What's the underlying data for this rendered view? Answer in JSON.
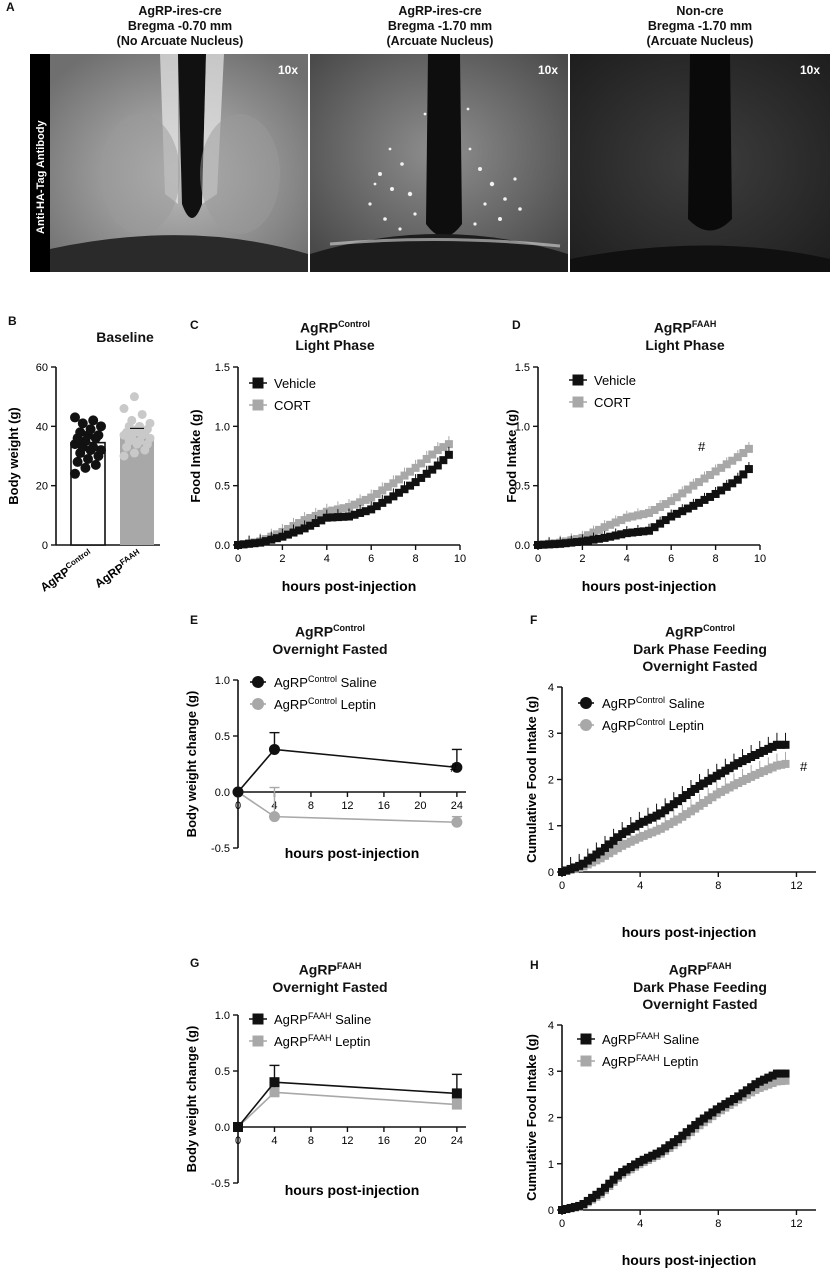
{
  "panel_A": {
    "letter": "A",
    "side_label": "Anti-HA-Tag Antibody",
    "mag_label": "10x",
    "images": [
      {
        "title_lines": [
          "AgRP-ires-cre",
          "Bregma -0.70 mm",
          "(No Arcuate Nucleus)"
        ]
      },
      {
        "title_lines": [
          "AgRP-ires-cre",
          "Bregma -1.70 mm",
          "(Arcuate Nucleus)"
        ]
      },
      {
        "title_lines": [
          "Non-cre",
          "Bregma -1.70 mm",
          "(Arcuate Nucleus)"
        ]
      }
    ]
  },
  "colors": {
    "black_series": "#111111",
    "gray_series": "#a8a8a8",
    "light_series": "#c9c9c9"
  },
  "chart_data": [
    {
      "id": "B",
      "letter": "B",
      "type": "bar",
      "title": "Baseline",
      "ylabel": "Body weight  (g)",
      "ylim": [
        0,
        60
      ],
      "yticks": [
        "0",
        "20",
        "40",
        "60"
      ],
      "categories": [
        {
          "base": "AgRP",
          "sup": "Control"
        },
        {
          "base": "AgRP",
          "sup": "FAAH"
        }
      ],
      "values": [
        34.5,
        36.8
      ],
      "points": [
        [
          24,
          26,
          27,
          28,
          29,
          30,
          31,
          32,
          32,
          33,
          33,
          34,
          35,
          36,
          36,
          37,
          37,
          38,
          39,
          40,
          41,
          42,
          43
        ],
        [
          30,
          31,
          32,
          33,
          34,
          34,
          35,
          35,
          36,
          36,
          37,
          37,
          38,
          38,
          38,
          39,
          39,
          40,
          40,
          41,
          42,
          44,
          46,
          50
        ]
      ]
    },
    {
      "id": "C",
      "letter": "C",
      "type": "line",
      "title_base": "AgRP",
      "title_sup": "Control",
      "title_line2": "Light Phase",
      "ylabel": "Food  Intake  (g)",
      "xlabel": "hours post-injection",
      "xlim": [
        0,
        10
      ],
      "ylim": [
        0,
        1.5
      ],
      "xticks": [
        "0",
        "2",
        "4",
        "6",
        "8",
        "10"
      ],
      "yticks": [
        "0.0",
        "0.5",
        "1.0",
        "1.5"
      ],
      "legend": [
        {
          "text": "Vehicle"
        },
        {
          "text": "CORT"
        }
      ],
      "series": [
        {
          "name": "Vehicle",
          "x": [
            0,
            1,
            2,
            3,
            4,
            5,
            6,
            7,
            8,
            9,
            9.5
          ],
          "y": [
            0.0,
            0.02,
            0.07,
            0.14,
            0.23,
            0.24,
            0.3,
            0.41,
            0.53,
            0.67,
            0.76
          ]
        },
        {
          "name": "CORT",
          "x": [
            0,
            1,
            2,
            3,
            4,
            5,
            6,
            7,
            8,
            9,
            9.5
          ],
          "y": [
            0.0,
            0.03,
            0.11,
            0.21,
            0.28,
            0.32,
            0.4,
            0.52,
            0.65,
            0.8,
            0.85
          ]
        }
      ]
    },
    {
      "id": "D",
      "letter": "D",
      "type": "line",
      "title_base": "AgRP",
      "title_sup": "FAAH",
      "title_line2": "Light Phase",
      "ylabel": "Food  Intake  (g)",
      "xlabel": "hours post-injection",
      "xlim": [
        0,
        10
      ],
      "ylim": [
        0,
        1.5
      ],
      "xticks": [
        "0",
        "2",
        "4",
        "6",
        "8",
        "10"
      ],
      "yticks": [
        "0.0",
        "0.5",
        "1.0",
        "1.5"
      ],
      "legend": [
        {
          "text": "Vehicle"
        },
        {
          "text": "CORT"
        }
      ],
      "annotation": "#",
      "series": [
        {
          "name": "Vehicle",
          "x": [
            0,
            1,
            2,
            3,
            4,
            5,
            6,
            7,
            8,
            9,
            9.5
          ],
          "y": [
            0.0,
            0.01,
            0.03,
            0.06,
            0.1,
            0.12,
            0.24,
            0.33,
            0.43,
            0.55,
            0.64
          ]
        },
        {
          "name": "CORT",
          "x": [
            0,
            1,
            2,
            3,
            4,
            5,
            6,
            7,
            8,
            9,
            9.5
          ],
          "y": [
            0.0,
            0.02,
            0.06,
            0.15,
            0.23,
            0.27,
            0.37,
            0.5,
            0.62,
            0.74,
            0.81
          ]
        }
      ]
    },
    {
      "id": "E",
      "letter": "E",
      "type": "line",
      "title_base": "AgRP",
      "title_sup": "Control",
      "title_line2": "Overnight Fasted",
      "ylabel": "Body weight change (g)",
      "xlabel": "hours post-injection",
      "xlim": [
        0,
        25
      ],
      "ylim": [
        -0.5,
        1.0
      ],
      "xticks": [
        "0",
        "4",
        "8",
        "12",
        "16",
        "20",
        "24"
      ],
      "yticks": [
        "-0.5",
        "0.0",
        "0.5",
        "1.0"
      ],
      "legend": [
        {
          "base": "AgRP",
          "sup": "Control",
          "text": " Saline"
        },
        {
          "base": "AgRP",
          "sup": "Control",
          "text": " Leptin"
        }
      ],
      "annotation": "#",
      "series": [
        {
          "name": "Saline",
          "x": [
            0,
            4,
            24
          ],
          "y": [
            0.0,
            0.38,
            0.22
          ],
          "err": [
            0,
            0.15,
            0.16
          ]
        },
        {
          "name": "Leptin",
          "x": [
            0,
            4,
            24
          ],
          "y": [
            0.0,
            -0.22,
            -0.27
          ],
          "err": [
            0,
            0.26,
            0.05
          ]
        }
      ]
    },
    {
      "id": "F",
      "letter": "F",
      "type": "line",
      "title_base": "AgRP",
      "title_sup": "Control",
      "title_line2": "Dark Phase  Feeding",
      "title_line3": "Overnight Fasted",
      "ylabel": "Cumulative Food  Intake (g)",
      "xlabel": "hours post-injection",
      "xlim": [
        0,
        13
      ],
      "ylim": [
        0,
        4
      ],
      "xticks": [
        "0",
        "4",
        "8",
        "12"
      ],
      "yticks": [
        "0",
        "1",
        "2",
        "3",
        "4"
      ],
      "legend": [
        {
          "base": "AgRP",
          "sup": "Control",
          "text": " Saline"
        },
        {
          "base": "AgRP",
          "sup": "Control",
          "text": " Leptin"
        }
      ],
      "annotation": "#",
      "series": [
        {
          "name": "Saline",
          "x": [
            0,
            1,
            2,
            3,
            4,
            5,
            6,
            7,
            8,
            9,
            10,
            11,
            11.6
          ],
          "y": [
            0.0,
            0.15,
            0.45,
            0.8,
            1.05,
            1.25,
            1.55,
            1.85,
            2.1,
            2.35,
            2.55,
            2.75,
            2.75
          ]
        },
        {
          "name": "Leptin",
          "x": [
            0,
            1,
            2,
            3,
            4,
            5,
            6,
            7,
            8,
            9,
            10,
            11,
            11.6
          ],
          "y": [
            0.0,
            0.1,
            0.3,
            0.55,
            0.75,
            0.92,
            1.15,
            1.42,
            1.7,
            1.92,
            2.12,
            2.3,
            2.35
          ]
        }
      ]
    },
    {
      "id": "G",
      "letter": "G",
      "type": "line",
      "title_base": "AgRP",
      "title_sup": "FAAH",
      "title_line2": "Overnight Fasted",
      "ylabel": "Body weight change (g)",
      "xlabel": "hours post-injection",
      "xlim": [
        0,
        25
      ],
      "ylim": [
        -0.5,
        1.0
      ],
      "xticks": [
        "0",
        "4",
        "8",
        "12",
        "16",
        "20",
        "24"
      ],
      "yticks": [
        "-0.5",
        "0.0",
        "0.5",
        "1.0"
      ],
      "legend": [
        {
          "base": "AgRP",
          "sup": "FAAH",
          "text": " Saline"
        },
        {
          "base": "AgRP",
          "sup": "FAAH",
          "text": " Leptin"
        }
      ],
      "series": [
        {
          "name": "Saline",
          "x": [
            0,
            4,
            24
          ],
          "y": [
            0.0,
            0.4,
            0.3
          ],
          "err": [
            0,
            0.15,
            0.17
          ]
        },
        {
          "name": "Leptin",
          "x": [
            0,
            4,
            24
          ],
          "y": [
            0.0,
            0.31,
            0.2
          ],
          "err": [
            0,
            0.08,
            0.05
          ]
        }
      ]
    },
    {
      "id": "H",
      "letter": "H",
      "type": "line",
      "title_base": "AgRP",
      "title_sup": "FAAH",
      "title_line2": "Dark Phase  Feeding",
      "title_line3": "Overnight Fasted",
      "ylabel": "Cumulative Food  Intake (g)",
      "xlabel": "hours post-injection",
      "xlim": [
        0,
        13
      ],
      "ylim": [
        0,
        4
      ],
      "xticks": [
        "0",
        "4",
        "8",
        "12"
      ],
      "yticks": [
        "0",
        "1",
        "2",
        "3",
        "4"
      ],
      "legend": [
        {
          "base": "AgRP",
          "sup": "FAAH",
          "text": " Saline"
        },
        {
          "base": "AgRP",
          "sup": "FAAH",
          "text": " Leptin"
        }
      ],
      "series": [
        {
          "name": "Saline",
          "x": [
            0,
            1,
            2,
            3,
            4,
            5,
            6,
            7,
            8,
            9,
            10,
            11,
            11.6
          ],
          "y": [
            0.0,
            0.1,
            0.4,
            0.8,
            1.05,
            1.25,
            1.55,
            1.9,
            2.2,
            2.45,
            2.75,
            2.95,
            2.95
          ]
        },
        {
          "name": "Leptin",
          "x": [
            0,
            1,
            2,
            3,
            4,
            5,
            6,
            7,
            8,
            9,
            10,
            11,
            11.6
          ],
          "y": [
            0.0,
            0.08,
            0.35,
            0.75,
            1.0,
            1.2,
            1.48,
            1.82,
            2.12,
            2.38,
            2.62,
            2.78,
            2.8
          ]
        }
      ]
    }
  ]
}
